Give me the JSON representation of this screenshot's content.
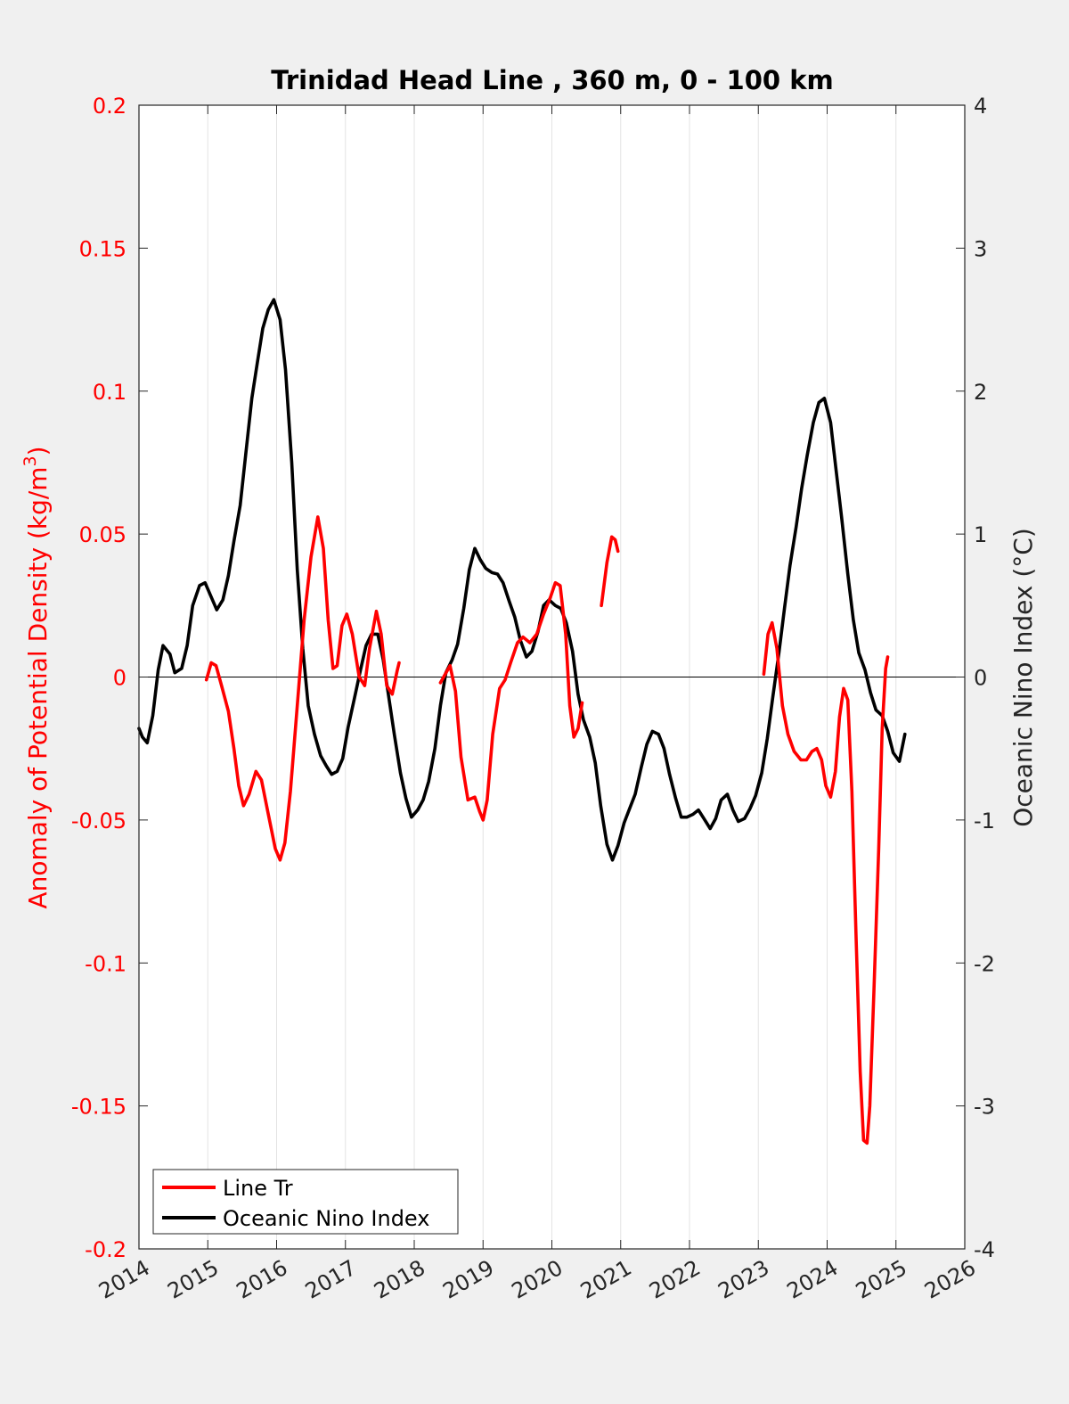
{
  "chart_data": {
    "type": "line",
    "title": "Trinidad Head Line , 360 m, 0 - 100 km",
    "x_axis": {
      "range": [
        2014,
        2026
      ],
      "tick_labels": [
        "2014",
        "2015",
        "2016",
        "2017",
        "2018",
        "2019",
        "2020",
        "2021",
        "2022",
        "2023",
        "2024",
        "2025",
        "2026"
      ],
      "grid": true
    },
    "y_left": {
      "label": "Anomaly of Potential Density (kg/m",
      "label_superscript": "3",
      "label_suffix": ")",
      "range": [
        -0.2,
        0.2
      ],
      "tick_values": [
        -0.2,
        -0.15,
        -0.1,
        -0.05,
        0,
        0.05,
        0.1,
        0.15,
        0.2
      ],
      "tick_labels": [
        "-0.2",
        "-0.15",
        "-0.1",
        "-0.05",
        "0",
        "0.05",
        "0.1",
        "0.15",
        "0.2"
      ],
      "color": "#ff0000"
    },
    "y_right": {
      "label": "Oceanic Nino Index (°C)",
      "range": [
        -4,
        4
      ],
      "tick_values": [
        -4,
        -3,
        -2,
        -1,
        0,
        1,
        2,
        3,
        4
      ],
      "tick_labels": [
        "-4",
        "-3",
        "-2",
        "-1",
        "0",
        "1",
        "2",
        "3",
        "4"
      ],
      "color": "#262626"
    },
    "zero_line": true,
    "legend": {
      "position": "bottom-left",
      "entries": [
        "Line Tr",
        "Oceanic Nino Index"
      ]
    },
    "series": [
      {
        "name": "Line Tr",
        "axis": "left",
        "color": "#ff0000",
        "segments": [
          [
            [
              2014.98,
              -0.001
            ],
            [
              2015.05,
              0.005
            ],
            [
              2015.12,
              0.004
            ],
            [
              2015.2,
              -0.003
            ],
            [
              2015.3,
              -0.012
            ],
            [
              2015.38,
              -0.025
            ],
            [
              2015.45,
              -0.038
            ],
            [
              2015.52,
              -0.045
            ],
            [
              2015.6,
              -0.041
            ],
            [
              2015.7,
              -0.033
            ],
            [
              2015.78,
              -0.036
            ],
            [
              2015.88,
              -0.048
            ],
            [
              2015.98,
              -0.06
            ],
            [
              2016.05,
              -0.064
            ],
            [
              2016.12,
              -0.058
            ],
            [
              2016.2,
              -0.04
            ],
            [
              2016.3,
              -0.01
            ],
            [
              2016.4,
              0.02
            ],
            [
              2016.5,
              0.042
            ],
            [
              2016.6,
              0.056
            ],
            [
              2016.68,
              0.045
            ],
            [
              2016.75,
              0.02
            ],
            [
              2016.82,
              0.003
            ],
            [
              2016.88,
              0.004
            ],
            [
              2016.95,
              0.018
            ],
            [
              2017.02,
              0.022
            ],
            [
              2017.1,
              0.015
            ],
            [
              2017.2,
              0.0
            ],
            [
              2017.28,
              -0.003
            ],
            [
              2017.35,
              0.01
            ],
            [
              2017.45,
              0.023
            ],
            [
              2017.52,
              0.015
            ],
            [
              2017.6,
              -0.003
            ],
            [
              2017.68,
              -0.006
            ],
            [
              2017.75,
              0.002
            ],
            [
              2017.78,
              0.005
            ]
          ],
          [
            [
              2018.38,
              -0.002
            ],
            [
              2018.45,
              0.001
            ],
            [
              2018.52,
              0.004
            ],
            [
              2018.6,
              -0.005
            ],
            [
              2018.68,
              -0.028
            ],
            [
              2018.78,
              -0.043
            ],
            [
              2018.88,
              -0.042
            ],
            [
              2018.95,
              -0.047
            ],
            [
              2019.0,
              -0.05
            ],
            [
              2019.06,
              -0.043
            ],
            [
              2019.14,
              -0.02
            ],
            [
              2019.24,
              -0.004
            ],
            [
              2019.32,
              -0.001
            ],
            [
              2019.4,
              0.005
            ],
            [
              2019.5,
              0.012
            ],
            [
              2019.58,
              0.014
            ],
            [
              2019.68,
              0.012
            ],
            [
              2019.78,
              0.015
            ],
            [
              2019.88,
              0.022
            ],
            [
              2019.98,
              0.028
            ],
            [
              2020.05,
              0.033
            ],
            [
              2020.12,
              0.032
            ],
            [
              2020.2,
              0.015
            ],
            [
              2020.26,
              -0.01
            ],
            [
              2020.32,
              -0.021
            ],
            [
              2020.38,
              -0.018
            ],
            [
              2020.44,
              -0.009
            ]
          ],
          [
            [
              2020.72,
              0.025
            ],
            [
              2020.8,
              0.04
            ],
            [
              2020.87,
              0.049
            ],
            [
              2020.92,
              0.048
            ],
            [
              2020.96,
              0.044
            ]
          ],
          [
            [
              2023.08,
              0.001
            ],
            [
              2023.14,
              0.015
            ],
            [
              2023.2,
              0.019
            ],
            [
              2023.27,
              0.01
            ],
            [
              2023.35,
              -0.01
            ],
            [
              2023.43,
              -0.02
            ],
            [
              2023.52,
              -0.026
            ],
            [
              2023.62,
              -0.029
            ],
            [
              2023.7,
              -0.029
            ],
            [
              2023.78,
              -0.026
            ],
            [
              2023.85,
              -0.025
            ],
            [
              2023.92,
              -0.029
            ],
            [
              2023.98,
              -0.038
            ],
            [
              2024.05,
              -0.042
            ],
            [
              2024.12,
              -0.033
            ],
            [
              2024.18,
              -0.014
            ],
            [
              2024.24,
              -0.004
            ],
            [
              2024.3,
              -0.008
            ],
            [
              2024.36,
              -0.04
            ],
            [
              2024.42,
              -0.09
            ],
            [
              2024.48,
              -0.138
            ],
            [
              2024.53,
              -0.162
            ],
            [
              2024.58,
              -0.163
            ],
            [
              2024.62,
              -0.15
            ],
            [
              2024.68,
              -0.11
            ],
            [
              2024.75,
              -0.06
            ],
            [
              2024.8,
              -0.018
            ],
            [
              2024.85,
              0.003
            ],
            [
              2024.88,
              0.007
            ]
          ]
        ]
      },
      {
        "name": "Oceanic Nino Index",
        "axis": "right",
        "color": "#000000",
        "segments": [
          [
            [
              2014.0,
              -0.36
            ],
            [
              2014.05,
              -0.42
            ],
            [
              2014.12,
              -0.46
            ],
            [
              2014.2,
              -0.27
            ],
            [
              2014.28,
              0.05
            ],
            [
              2014.35,
              0.22
            ],
            [
              2014.45,
              0.16
            ],
            [
              2014.52,
              0.03
            ],
            [
              2014.62,
              0.06
            ],
            [
              2014.7,
              0.22
            ],
            [
              2014.78,
              0.5
            ],
            [
              2014.88,
              0.64
            ],
            [
              2014.96,
              0.66
            ],
            [
              2015.05,
              0.56
            ],
            [
              2015.13,
              0.47
            ],
            [
              2015.22,
              0.54
            ],
            [
              2015.3,
              0.71
            ],
            [
              2015.38,
              0.95
            ],
            [
              2015.47,
              1.2
            ],
            [
              2015.55,
              1.55
            ],
            [
              2015.64,
              1.95
            ],
            [
              2015.72,
              2.2
            ],
            [
              2015.8,
              2.44
            ],
            [
              2015.88,
              2.57
            ],
            [
              2015.96,
              2.64
            ],
            [
              2016.05,
              2.5
            ],
            [
              2016.13,
              2.15
            ],
            [
              2016.22,
              1.5
            ],
            [
              2016.3,
              0.75
            ],
            [
              2016.38,
              0.2
            ],
            [
              2016.46,
              -0.2
            ],
            [
              2016.55,
              -0.4
            ],
            [
              2016.64,
              -0.55
            ],
            [
              2016.72,
              -0.62
            ],
            [
              2016.8,
              -0.68
            ],
            [
              2016.88,
              -0.66
            ],
            [
              2016.96,
              -0.57
            ],
            [
              2017.04,
              -0.35
            ],
            [
              2017.13,
              -0.15
            ],
            [
              2017.22,
              0.05
            ],
            [
              2017.3,
              0.22
            ],
            [
              2017.38,
              0.3
            ],
            [
              2017.47,
              0.3
            ],
            [
              2017.55,
              0.12
            ],
            [
              2017.63,
              -0.14
            ],
            [
              2017.71,
              -0.4
            ],
            [
              2017.8,
              -0.67
            ],
            [
              2017.88,
              -0.85
            ],
            [
              2017.96,
              -0.98
            ],
            [
              2018.05,
              -0.93
            ],
            [
              2018.13,
              -0.86
            ],
            [
              2018.21,
              -0.73
            ],
            [
              2018.3,
              -0.5
            ],
            [
              2018.38,
              -0.2
            ],
            [
              2018.46,
              0.03
            ],
            [
              2018.55,
              0.12
            ],
            [
              2018.63,
              0.23
            ],
            [
              2018.72,
              0.48
            ],
            [
              2018.8,
              0.75
            ],
            [
              2018.88,
              0.9
            ],
            [
              2018.96,
              0.82
            ],
            [
              2019.04,
              0.76
            ],
            [
              2019.13,
              0.73
            ],
            [
              2019.21,
              0.72
            ],
            [
              2019.29,
              0.66
            ],
            [
              2019.38,
              0.53
            ],
            [
              2019.46,
              0.42
            ],
            [
              2019.54,
              0.26
            ],
            [
              2019.63,
              0.14
            ],
            [
              2019.71,
              0.18
            ],
            [
              2019.8,
              0.32
            ],
            [
              2019.88,
              0.5
            ],
            [
              2019.96,
              0.54
            ],
            [
              2020.05,
              0.5
            ],
            [
              2020.13,
              0.48
            ],
            [
              2020.21,
              0.38
            ],
            [
              2020.3,
              0.18
            ],
            [
              2020.38,
              -0.12
            ],
            [
              2020.46,
              -0.3
            ],
            [
              2020.55,
              -0.42
            ],
            [
              2020.63,
              -0.6
            ],
            [
              2020.71,
              -0.9
            ],
            [
              2020.8,
              -1.17
            ],
            [
              2020.88,
              -1.28
            ],
            [
              2020.96,
              -1.18
            ],
            [
              2021.05,
              -1.02
            ],
            [
              2021.13,
              -0.92
            ],
            [
              2021.21,
              -0.82
            ],
            [
              2021.3,
              -0.63
            ],
            [
              2021.38,
              -0.47
            ],
            [
              2021.46,
              -0.38
            ],
            [
              2021.55,
              -0.4
            ],
            [
              2021.63,
              -0.5
            ],
            [
              2021.71,
              -0.68
            ],
            [
              2021.8,
              -0.85
            ],
            [
              2021.88,
              -0.98
            ],
            [
              2021.96,
              -0.98
            ],
            [
              2022.05,
              -0.96
            ],
            [
              2022.13,
              -0.93
            ],
            [
              2022.21,
              -0.99
            ],
            [
              2022.3,
              -1.06
            ],
            [
              2022.38,
              -0.99
            ],
            [
              2022.46,
              -0.86
            ],
            [
              2022.55,
              -0.82
            ],
            [
              2022.63,
              -0.93
            ],
            [
              2022.71,
              -1.01
            ],
            [
              2022.8,
              -0.99
            ],
            [
              2022.88,
              -0.92
            ],
            [
              2022.96,
              -0.83
            ],
            [
              2023.05,
              -0.67
            ],
            [
              2023.13,
              -0.43
            ],
            [
              2023.21,
              -0.14
            ],
            [
              2023.3,
              0.17
            ],
            [
              2023.38,
              0.48
            ],
            [
              2023.46,
              0.78
            ],
            [
              2023.55,
              1.05
            ],
            [
              2023.63,
              1.32
            ],
            [
              2023.71,
              1.55
            ],
            [
              2023.8,
              1.78
            ],
            [
              2023.88,
              1.92
            ],
            [
              2023.96,
              1.95
            ],
            [
              2024.05,
              1.78
            ],
            [
              2024.13,
              1.45
            ],
            [
              2024.21,
              1.12
            ],
            [
              2024.3,
              0.72
            ],
            [
              2024.38,
              0.4
            ],
            [
              2024.46,
              0.17
            ],
            [
              2024.55,
              0.05
            ],
            [
              2024.63,
              -0.11
            ],
            [
              2024.71,
              -0.23
            ],
            [
              2024.8,
              -0.27
            ],
            [
              2024.88,
              -0.38
            ],
            [
              2024.96,
              -0.53
            ],
            [
              2025.05,
              -0.59
            ],
            [
              2025.13,
              -0.4
            ]
          ]
        ]
      }
    ]
  }
}
